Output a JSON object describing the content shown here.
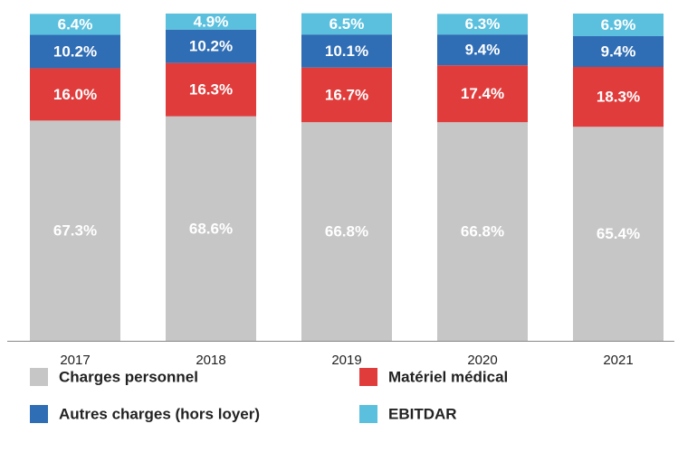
{
  "chart_data": {
    "type": "stacked_bar",
    "categories": [
      "2017",
      "2018",
      "2019",
      "2020",
      "2021"
    ],
    "ylim": [
      0,
      100
    ],
    "series": [
      {
        "name": "Charges personnel",
        "color": "#c6c6c6",
        "values": [
          67.3,
          68.6,
          66.8,
          66.8,
          65.4
        ],
        "value_labels": [
          "67.3%",
          "68.6%",
          "66.8%",
          "66.8%",
          "65.4%"
        ]
      },
      {
        "name": "Matériel médical",
        "color": "#e03c3c",
        "values": [
          16.0,
          16.3,
          16.7,
          17.4,
          18.3
        ],
        "value_labels": [
          "16.0%",
          "16.3%",
          "16.7%",
          "17.4%",
          "18.3%"
        ]
      },
      {
        "name": "Autres charges (hors loyer)",
        "color": "#2f6db5",
        "values": [
          10.2,
          10.2,
          10.1,
          9.4,
          9.4
        ],
        "value_labels": [
          "10.2%",
          "10.2%",
          "10.1%",
          "9.4%",
          "9.4%"
        ]
      },
      {
        "name": "EBITDAR",
        "color": "#5bc0de",
        "values": [
          6.4,
          4.9,
          6.5,
          6.3,
          6.9
        ],
        "value_labels": [
          "6.4%",
          "4.9%",
          "6.5%",
          "6.3%",
          "6.9%"
        ]
      }
    ]
  }
}
